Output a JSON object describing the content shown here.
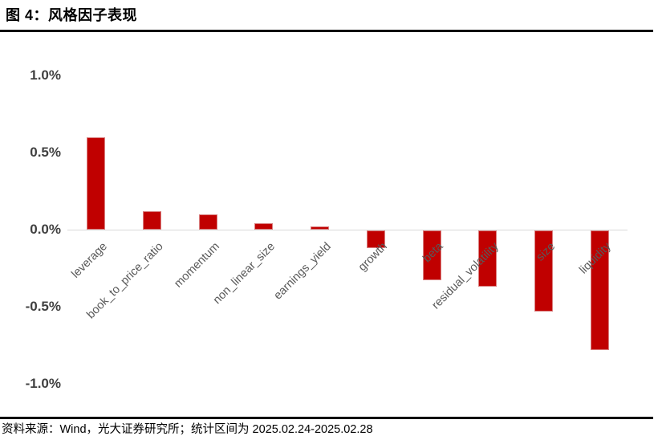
{
  "header": {
    "title": "图 4：风格因子表现"
  },
  "footer": {
    "source": "资料来源：Wind，光大证券研究所；统计区间为 2025.02.24-2025.02.28"
  },
  "chart_data": {
    "type": "bar",
    "title": "风格因子表现",
    "categories": [
      "leverage",
      "book_to_price_ratio",
      "momentum",
      "non_linear_size",
      "earnings_yield",
      "growth",
      "beta",
      "residual_volatility",
      "size",
      "liquidity"
    ],
    "values": [
      0.6,
      0.12,
      0.1,
      0.04,
      0.02,
      -0.12,
      -0.33,
      -0.37,
      -0.53,
      -0.78
    ],
    "unit": "%",
    "xlabel": "",
    "ylabel": "",
    "ylim": [
      -1.0,
      1.0
    ],
    "yticks": [
      {
        "label": "1.0%",
        "value": 1.0
      },
      {
        "label": "0.5%",
        "value": 0.5
      },
      {
        "label": "0.0%",
        "value": 0.0
      },
      {
        "label": "-0.5%",
        "value": -0.5
      },
      {
        "label": "-1.0%",
        "value": -1.0
      }
    ],
    "grid": false,
    "legend": null,
    "colors": {
      "bar_fill": "#c00000",
      "bar_border": "#d98080",
      "zero_line": "#d9d9d9",
      "ytick_text": "#404040",
      "xtick_text": "#595959",
      "rule": "#000000"
    }
  }
}
